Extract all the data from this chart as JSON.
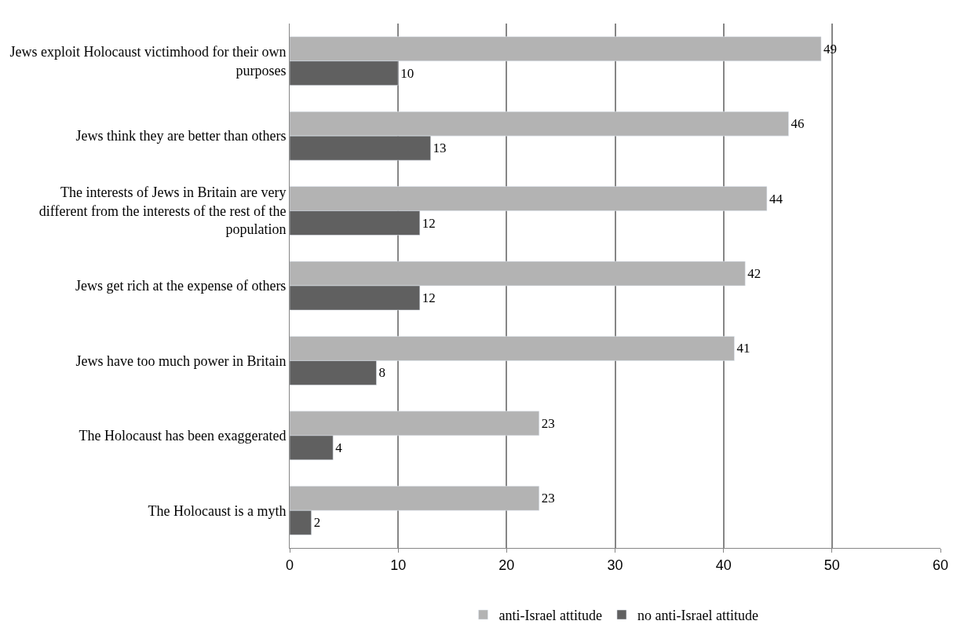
{
  "chart_data": {
    "type": "bar",
    "orientation": "horizontal",
    "categories": [
      "Jews exploit Holocaust victimhood for their own purposes",
      "Jews think they are better than others",
      "The interests of Jews in Britain are very different from the interests of the rest of the population",
      "Jews get rich at the expense of others",
      "Jews have too much power in Britain",
      "The Holocaust has been exaggerated",
      "The Holocaust is a myth"
    ],
    "series": [
      {
        "name": "anti-Israel attitude",
        "color": "#b3b3b3",
        "values": [
          49,
          46,
          44,
          42,
          41,
          23,
          23
        ]
      },
      {
        "name": "no anti-Israel attitude",
        "color": "#606060",
        "values": [
          10,
          13,
          12,
          12,
          8,
          4,
          2
        ]
      }
    ],
    "xlim": [
      0,
      60
    ],
    "xticks": [
      0,
      10,
      20,
      30,
      40,
      50,
      60
    ],
    "grid": "x",
    "legend": "bottom",
    "data_labels": true
  }
}
